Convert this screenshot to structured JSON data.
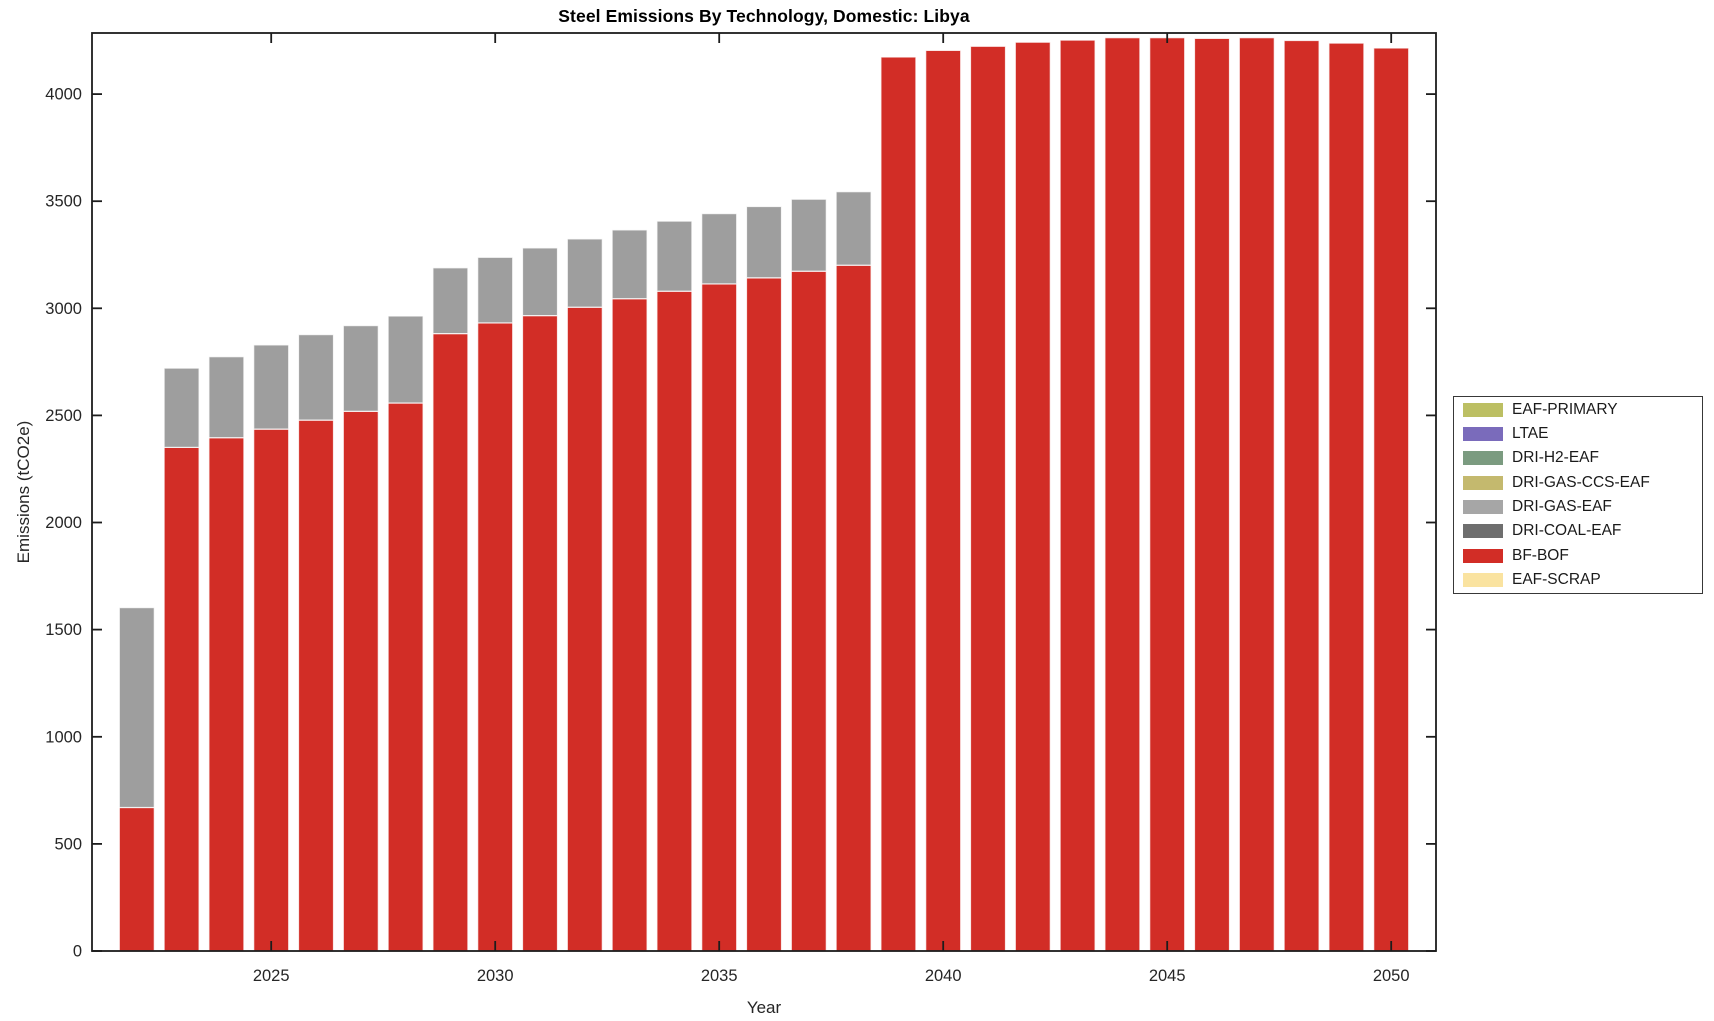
{
  "title": "Steel Emissions By Technology, Domestic: Libya",
  "chart_data": {
    "type": "bar",
    "stacked": true,
    "title": "Steel Emissions By Technology, Domestic: Libya",
    "xlabel": "Year",
    "ylabel": "Emissions (tCO2e)",
    "x": [
      2022,
      2023,
      2024,
      2025,
      2026,
      2027,
      2028,
      2029,
      2030,
      2031,
      2032,
      2033,
      2034,
      2035,
      2036,
      2037,
      2038,
      2039,
      2040,
      2041,
      2042,
      2043,
      2044,
      2045,
      2046,
      2047,
      2048,
      2049,
      2050
    ],
    "series": [
      {
        "name": "BF-BOF",
        "color": "#D22D26",
        "values": [
          670,
          2351,
          2396,
          2436,
          2478,
          2519,
          2558,
          2882,
          2932,
          2966,
          3005,
          3045,
          3080,
          3114,
          3142,
          3173,
          3201,
          4173,
          4204,
          4223,
          4242,
          4252,
          4263,
          4263,
          4260,
          4263,
          4250,
          4238,
          4215
        ]
      },
      {
        "name": "DRI-GAS-EAF",
        "color": "#9E9E9E",
        "values": [
          933,
          370,
          378,
          393,
          399,
          400,
          406,
          307,
          306,
          316,
          319,
          321,
          327,
          328,
          333,
          336,
          343,
          0,
          0,
          0,
          0,
          0,
          0,
          0,
          0,
          0,
          0,
          0,
          0
        ]
      }
    ],
    "xlim": [
      2021,
      2051
    ],
    "ylim": [
      0,
      4285
    ],
    "xticks": [
      2025,
      2030,
      2035,
      2040,
      2045,
      2050
    ],
    "yticks": [
      0,
      500,
      1000,
      1500,
      2000,
      2500,
      3000,
      3500,
      4000
    ],
    "grid": false,
    "legend_position": "right-outside",
    "legend": [
      {
        "label": "EAF-PRIMARY",
        "color": "#BCBF63"
      },
      {
        "label": "LTAE",
        "color": "#7A6BBB"
      },
      {
        "label": "DRI-H2-EAF",
        "color": "#7B9B80"
      },
      {
        "label": "DRI-GAS-CCS-EAF",
        "color": "#C4B96E"
      },
      {
        "label": "DRI-GAS-EAF",
        "color": "#A6A6A6"
      },
      {
        "label": "DRI-COAL-EAF",
        "color": "#6E6E6E"
      },
      {
        "label": "BF-BOF",
        "color": "#D22D26"
      },
      {
        "label": "EAF-SCRAP",
        "color": "#FAE3A0"
      }
    ]
  }
}
